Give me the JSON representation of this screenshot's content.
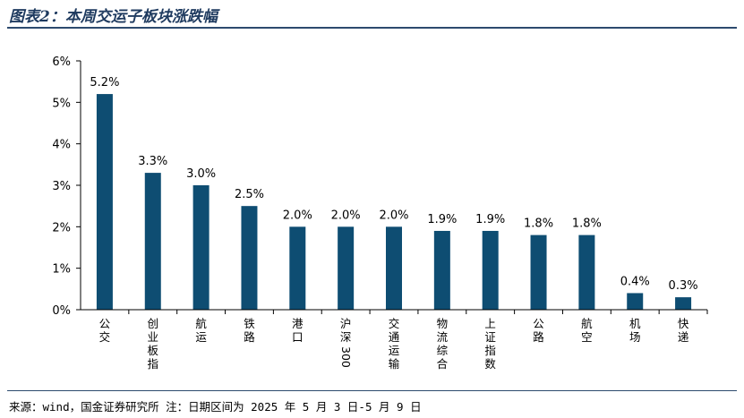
{
  "header": {
    "title": "图表2：本周交运子板块涨跌幅"
  },
  "footer": {
    "source": "来源：wind，国金证券研究所   注：日期区间为 2025 年 5 月 3 日-5 月 9 日"
  },
  "colors": {
    "bar": "#0e4d72",
    "axis": "#000000",
    "rule": "#2d4a6e"
  },
  "chart_data": {
    "type": "bar",
    "categories": [
      "公交",
      "创业板指",
      "航运",
      "铁路",
      "港口",
      "沪深300",
      "交通运输",
      "物流综合",
      "上证指数",
      "公路",
      "航空",
      "机场",
      "快递"
    ],
    "values": [
      5.2,
      3.3,
      3.0,
      2.5,
      2.0,
      2.0,
      2.0,
      1.9,
      1.9,
      1.8,
      1.8,
      0.4,
      0.3
    ],
    "value_labels": [
      "5.2%",
      "3.3%",
      "3.0%",
      "2.5%",
      "2.0%",
      "2.0%",
      "2.0%",
      "1.9%",
      "1.9%",
      "1.8%",
      "1.8%",
      "0.4%",
      "0.3%"
    ],
    "ylim": [
      0,
      6
    ],
    "yticks": [
      0,
      1,
      2,
      3,
      4,
      5,
      6
    ],
    "ytick_labels": [
      "0%",
      "1%",
      "2%",
      "3%",
      "4%",
      "5%",
      "6%"
    ],
    "grid": false,
    "legend": "none",
    "xlabel": "",
    "ylabel": ""
  }
}
